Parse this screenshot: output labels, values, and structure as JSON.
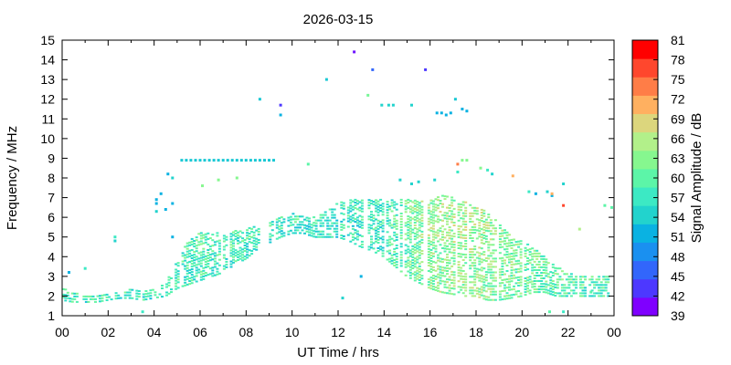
{
  "chart_data": {
    "type": "heatmap",
    "title": "2026-03-15",
    "xlabel": "UT Time / hrs",
    "ylabel": "Frequency / MHz",
    "colorbar_label": "Signal Amplitude / dB",
    "xlim": [
      0,
      24
    ],
    "ylim": [
      1,
      15
    ],
    "x_ticks": [
      "00",
      "02",
      "04",
      "06",
      "08",
      "10",
      "12",
      "14",
      "16",
      "18",
      "20",
      "22",
      "00"
    ],
    "y_ticks": [
      "1",
      "2",
      "3",
      "4",
      "5",
      "6",
      "7",
      "8",
      "9",
      "10",
      "11",
      "12",
      "13",
      "14",
      "15"
    ],
    "colorbar_range": [
      39,
      81
    ],
    "colorbar_ticks": [
      "39",
      "42",
      "45",
      "48",
      "51",
      "54",
      "57",
      "60",
      "63",
      "66",
      "69",
      "72",
      "75",
      "78",
      "81"
    ],
    "colorbar_colors": [
      "#7f00ff",
      "#4d38ff",
      "#3266fb",
      "#1a90f0",
      "#0ab2e2",
      "#22d3cd",
      "#3ce9c4",
      "#5cf5a8",
      "#86f78f",
      "#b2f08a",
      "#dcd67d",
      "#ffb060",
      "#ff7d47",
      "#ff472d",
      "#ff0000"
    ],
    "grid": false,
    "colorbar_position": "right",
    "series": [
      {
        "band_profile": [
          [
            0.0,
            1.8,
            2.4
          ],
          [
            0.5,
            1.7,
            2.2
          ],
          [
            1.0,
            1.7,
            2.0
          ],
          [
            1.5,
            1.7,
            2.0
          ],
          [
            2.0,
            1.8,
            2.1
          ],
          [
            2.5,
            1.9,
            2.2
          ],
          [
            3.0,
            1.9,
            2.4
          ],
          [
            3.5,
            1.8,
            2.2
          ],
          [
            4.5,
            2.0,
            2.6
          ],
          [
            5.0,
            2.4,
            4.0
          ],
          [
            5.5,
            2.6,
            4.8
          ],
          [
            6.0,
            2.8,
            5.2
          ],
          [
            6.5,
            3.0,
            5.2
          ],
          [
            7.0,
            3.2,
            5.2
          ],
          [
            7.5,
            3.6,
            5.3
          ],
          [
            8.0,
            3.9,
            5.4
          ],
          [
            8.5,
            4.4,
            5.6
          ],
          [
            9.0,
            4.7,
            5.8
          ],
          [
            9.5,
            5.0,
            6.0
          ],
          [
            10.0,
            5.2,
            6.2
          ],
          [
            10.5,
            5.2,
            6.1
          ],
          [
            11.0,
            5.0,
            6.0
          ],
          [
            11.5,
            5.0,
            6.3
          ],
          [
            12.0,
            5.0,
            6.8
          ],
          [
            12.5,
            4.8,
            6.9
          ],
          [
            13.0,
            4.5,
            6.9
          ],
          [
            13.5,
            4.3,
            6.9
          ],
          [
            14.0,
            4.0,
            6.9
          ],
          [
            14.5,
            3.5,
            6.9
          ],
          [
            15.0,
            3.0,
            6.9
          ],
          [
            15.5,
            2.7,
            6.9
          ],
          [
            16.0,
            2.4,
            6.9
          ],
          [
            16.5,
            2.2,
            7.1
          ],
          [
            17.0,
            2.1,
            7.1
          ],
          [
            17.5,
            2.0,
            6.8
          ],
          [
            18.0,
            2.0,
            6.5
          ],
          [
            18.5,
            1.8,
            6.3
          ],
          [
            19.0,
            1.8,
            5.7
          ],
          [
            19.5,
            1.9,
            5.1
          ],
          [
            20.0,
            2.0,
            4.8
          ],
          [
            20.5,
            2.2,
            4.5
          ],
          [
            21.0,
            2.2,
            4.0
          ],
          [
            21.5,
            2.0,
            3.5
          ],
          [
            22.0,
            2.0,
            3.2
          ],
          [
            22.5,
            2.0,
            3.1
          ],
          [
            23.0,
            2.0,
            3.0
          ],
          [
            23.5,
            2.0,
            3.0
          ],
          [
            24.0,
            2.0,
            3.0
          ]
        ],
        "amplitude_profile": [
          [
            0,
            57
          ],
          [
            4,
            57
          ],
          [
            6,
            58
          ],
          [
            9,
            57
          ],
          [
            12,
            56
          ],
          [
            14,
            57
          ],
          [
            16,
            63
          ],
          [
            18,
            64
          ],
          [
            20,
            61
          ],
          [
            22,
            59
          ],
          [
            24,
            58
          ]
        ]
      }
    ],
    "points": [
      [
        9.5,
        11.7,
        42
      ],
      [
        9.5,
        11.2,
        51
      ],
      [
        8.6,
        12.0,
        53
      ],
      [
        12.7,
        14.4,
        40
      ],
      [
        13.5,
        13.5,
        45
      ],
      [
        15.8,
        13.5,
        42
      ],
      [
        11.5,
        13.0,
        53
      ],
      [
        13.3,
        12.2,
        62
      ],
      [
        13.9,
        11.7,
        54
      ],
      [
        14.2,
        11.7,
        54
      ],
      [
        14.4,
        11.7,
        54
      ],
      [
        15.2,
        11.7,
        54
      ],
      [
        17.1,
        12.0,
        53
      ],
      [
        16.3,
        11.3,
        51
      ],
      [
        16.5,
        11.3,
        51
      ],
      [
        16.7,
        11.2,
        51
      ],
      [
        16.9,
        11.3,
        51
      ],
      [
        17.4,
        11.5,
        51
      ],
      [
        17.6,
        11.4,
        51
      ],
      [
        17.2,
        8.7,
        75
      ],
      [
        17.4,
        8.9,
        63
      ],
      [
        17.6,
        8.9,
        63
      ],
      [
        18.2,
        8.5,
        63
      ],
      [
        18.5,
        8.4,
        57
      ],
      [
        18.7,
        8.2,
        54
      ],
      [
        19.6,
        8.1,
        72
      ],
      [
        17.2,
        8.3,
        57
      ],
      [
        21.8,
        6.6,
        78
      ],
      [
        21.1,
        7.3,
        54
      ],
      [
        21.3,
        7.1,
        51
      ],
      [
        21.8,
        7.7,
        54
      ],
      [
        21.3,
        7.2,
        72
      ],
      [
        22.5,
        5.4,
        66
      ],
      [
        23.6,
        6.6,
        60
      ],
      [
        23.9,
        6.5,
        60
      ],
      [
        20.3,
        7.3,
        57
      ],
      [
        20.6,
        7.2,
        51
      ],
      [
        21.2,
        1.2,
        60
      ],
      [
        21.8,
        1.2,
        57
      ],
      [
        4.1,
        6.9,
        51
      ],
      [
        4.1,
        6.7,
        51
      ],
      [
        4.3,
        7.2,
        51
      ],
      [
        4.5,
        6.4,
        51
      ],
      [
        4.6,
        8.2,
        51
      ],
      [
        4.8,
        6.7,
        51
      ],
      [
        4.8,
        8.0,
        54
      ],
      [
        4.1,
        6.3,
        54
      ],
      [
        3.5,
        1.2,
        57
      ],
      [
        0.3,
        3.2,
        51
      ],
      [
        1.0,
        3.4,
        57
      ],
      [
        2.3,
        4.8,
        54
      ],
      [
        2.3,
        5.0,
        57
      ],
      [
        4.8,
        5.0,
        51
      ],
      [
        6.1,
        7.6,
        63
      ],
      [
        6.8,
        7.9,
        63
      ],
      [
        7.6,
        8.0,
        63
      ],
      [
        10.7,
        8.7,
        60
      ],
      [
        13.0,
        3.0,
        51
      ],
      [
        14.7,
        7.9,
        54
      ],
      [
        15.2,
        7.7,
        54
      ],
      [
        15.5,
        7.8,
        54
      ],
      [
        16.2,
        7.9,
        54
      ],
      [
        12.2,
        1.9,
        54
      ],
      [
        23.0,
        2.2,
        60
      ]
    ],
    "horizontal_segment": {
      "x_start": 5.2,
      "x_end": 9.3,
      "y": 8.9,
      "amplitude": 53
    }
  }
}
